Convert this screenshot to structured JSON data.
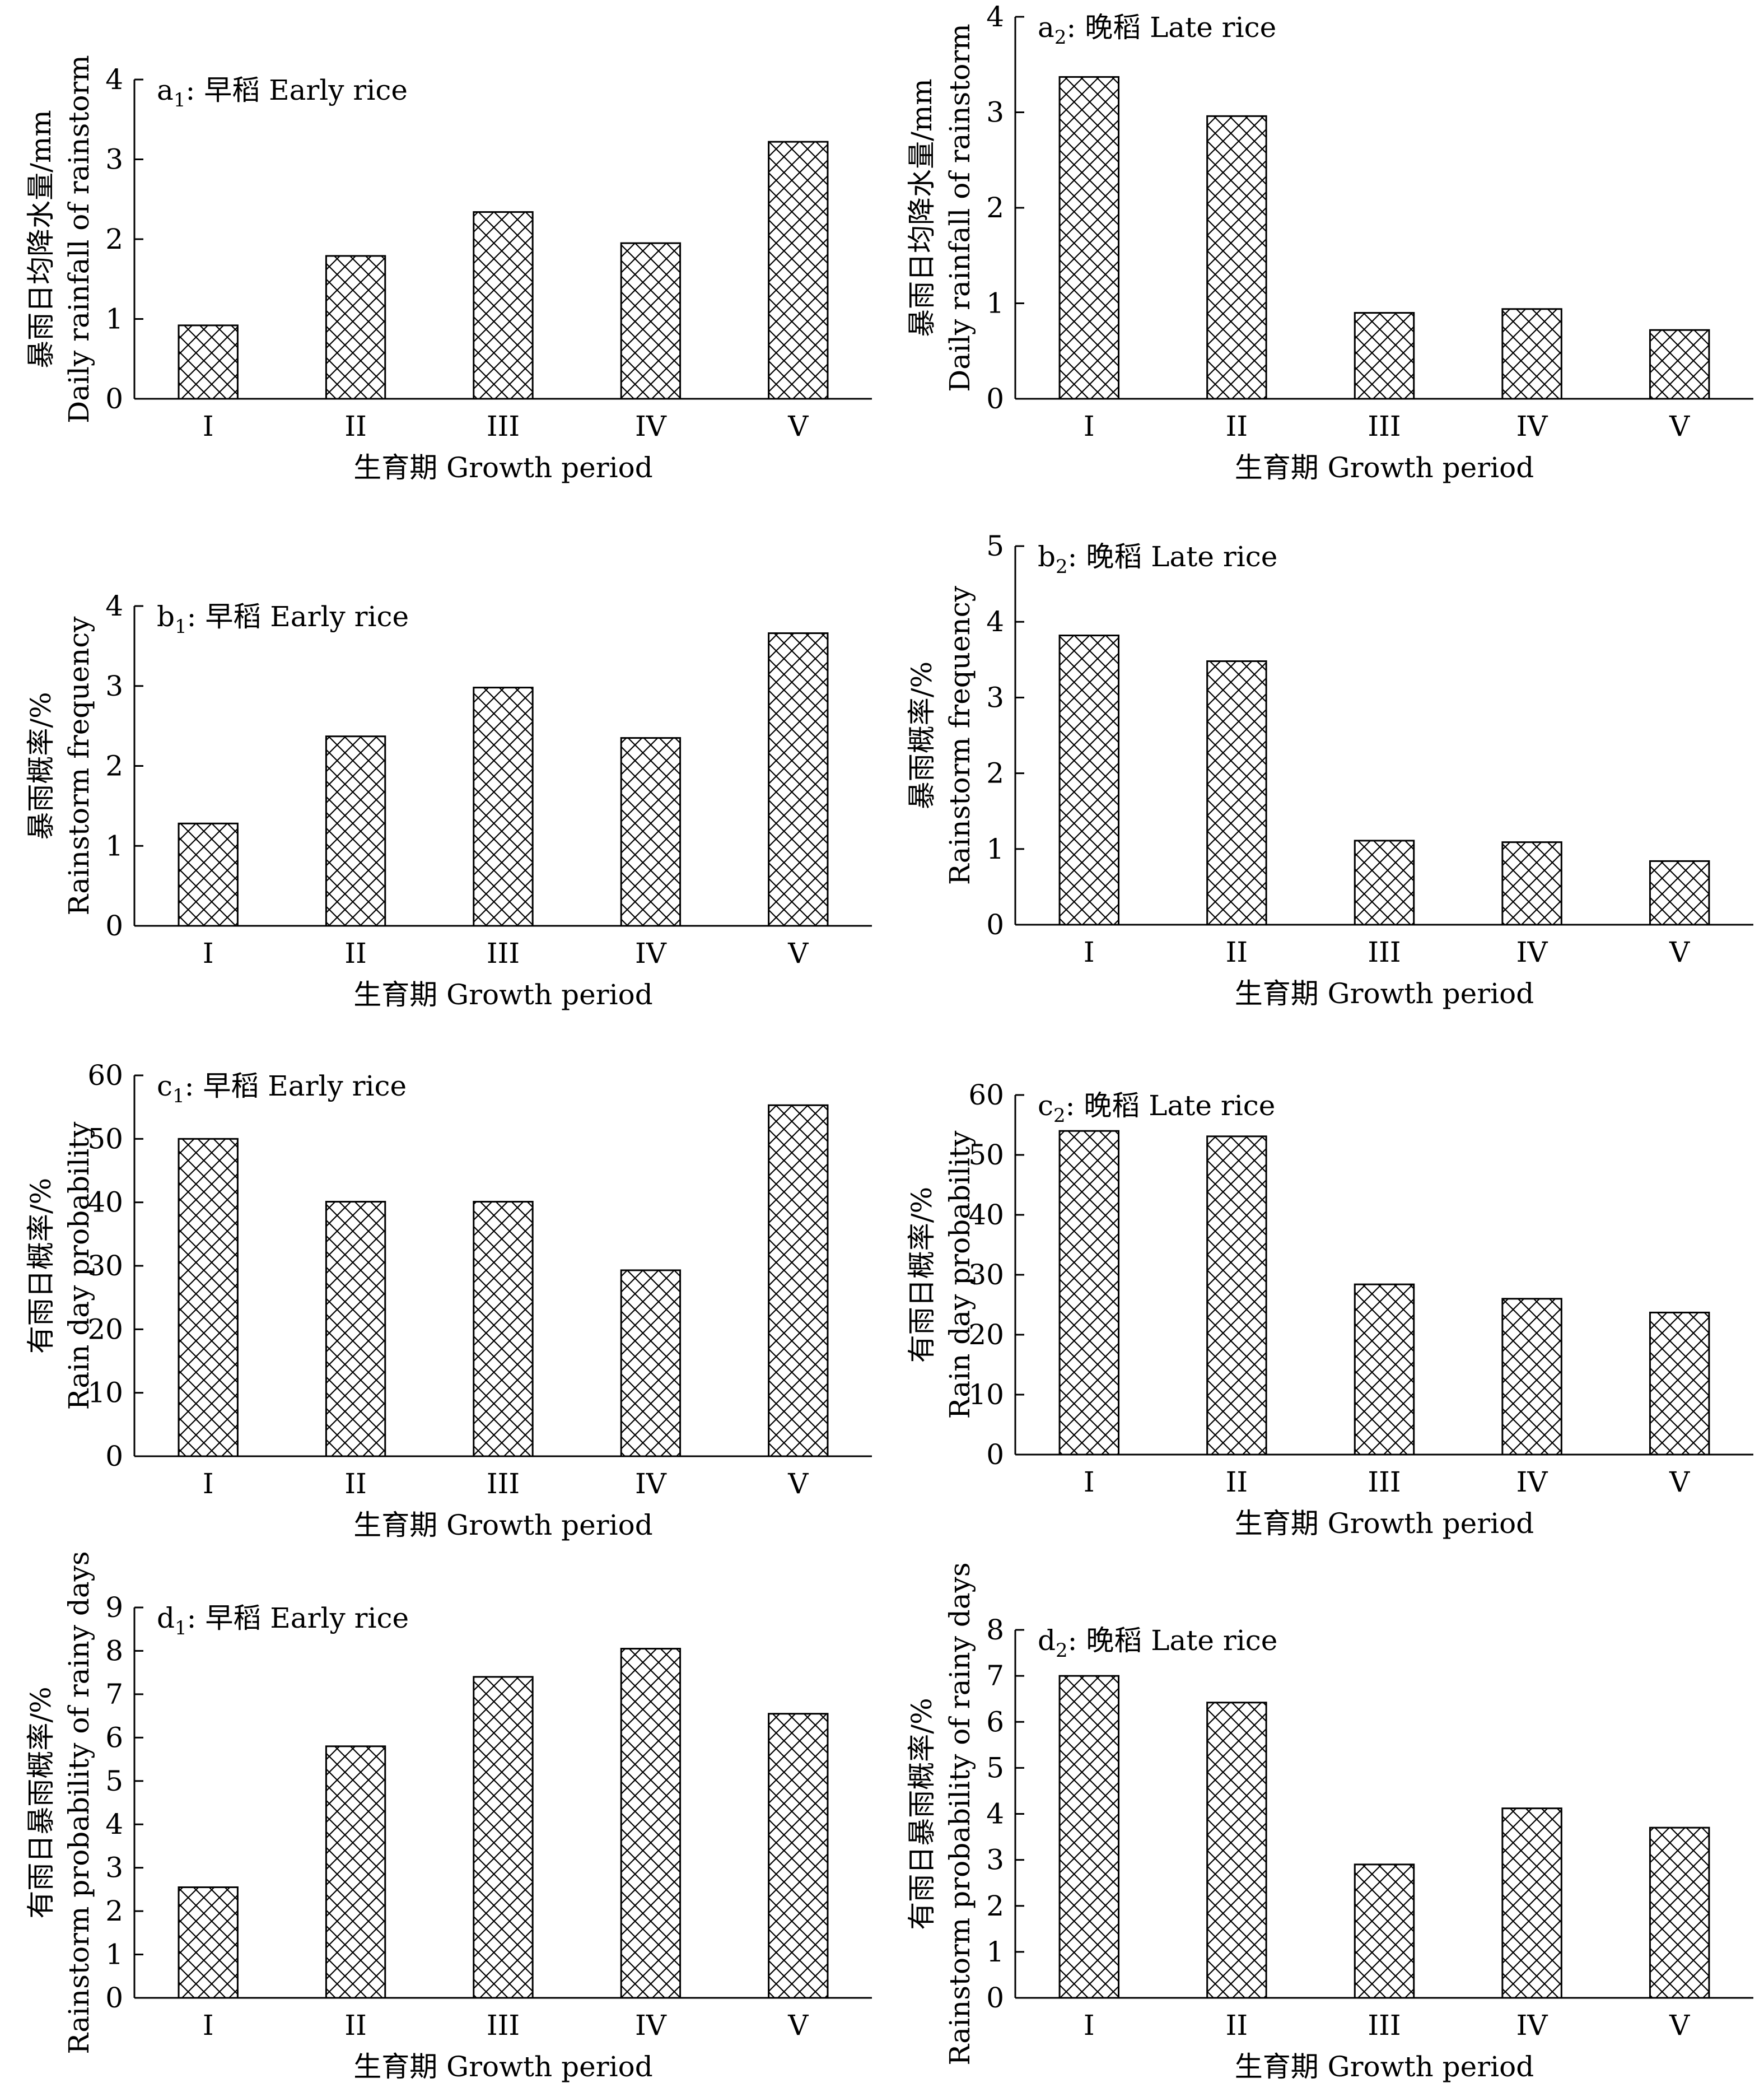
{
  "hatch_color": "#000000",
  "chart_data": [
    {
      "id": "a1",
      "type": "bar",
      "panel_label": "a",
      "panel_sub": "1",
      "panel_text": ": 早稻 Early rice",
      "categories": [
        "I",
        "II",
        "III",
        "IV",
        "V"
      ],
      "values": [
        0.92,
        1.79,
        2.34,
        1.95,
        3.22
      ],
      "ylim": [
        0,
        4
      ],
      "yticks": [
        "0",
        "1",
        "2",
        "3",
        "4"
      ],
      "ylabel_zh": "暴雨日均降水量/mm",
      "ylabel_en": "Daily rainfall of rainstorm",
      "xlabel": "生育期 Growth period"
    },
    {
      "id": "a2",
      "type": "bar",
      "panel_label": "a",
      "panel_sub": "2",
      "panel_text": ": 晚稻 Late rice",
      "categories": [
        "I",
        "II",
        "III",
        "IV",
        "V"
      ],
      "values": [
        3.37,
        2.96,
        0.9,
        0.94,
        0.72
      ],
      "ylim": [
        0,
        4
      ],
      "yticks": [
        "0",
        "1",
        "2",
        "3",
        "4"
      ],
      "ylabel_zh": "暴雨日均降水量/mm",
      "ylabel_en": "Daily rainfall of rainstorm",
      "xlabel": "生育期 Growth period"
    },
    {
      "id": "b1",
      "type": "bar",
      "panel_label": "b",
      "panel_sub": "1",
      "panel_text": ": 早稻 Early rice",
      "categories": [
        "I",
        "II",
        "III",
        "IV",
        "V"
      ],
      "values": [
        1.28,
        2.37,
        2.98,
        2.35,
        3.66
      ],
      "ylim": [
        0,
        4
      ],
      "yticks": [
        "0",
        "1",
        "2",
        "3",
        "4"
      ],
      "ylabel_zh": "暴雨概率/%",
      "ylabel_en": "Rainstorm frequency",
      "xlabel": "生育期 Growth period"
    },
    {
      "id": "b2",
      "type": "bar",
      "panel_label": "b",
      "panel_sub": "2",
      "panel_text": ": 晚稻 Late rice",
      "categories": [
        "I",
        "II",
        "III",
        "IV",
        "V"
      ],
      "values": [
        3.82,
        3.48,
        1.11,
        1.09,
        0.84
      ],
      "ylim": [
        0,
        5
      ],
      "yticks": [
        "0",
        "1",
        "2",
        "3",
        "4",
        "5"
      ],
      "ylabel_zh": "暴雨概率/%",
      "ylabel_en": "Rainstorm frequency",
      "xlabel": "生育期 Growth period"
    },
    {
      "id": "c1",
      "type": "bar",
      "panel_label": "c",
      "panel_sub": "1",
      "panel_text": ": 早稻 Early rice",
      "categories": [
        "I",
        "II",
        "III",
        "IV",
        "V"
      ],
      "values": [
        50,
        40.1,
        40.1,
        29.3,
        55.3
      ],
      "ylim": [
        0,
        60
      ],
      "yticks": [
        "0",
        "10",
        "20",
        "30",
        "40",
        "50",
        "60"
      ],
      "ylabel_zh": "有雨日概率/%",
      "ylabel_en": "Rain day probability",
      "xlabel": "生育期 Growth period"
    },
    {
      "id": "c2",
      "type": "bar",
      "panel_label": "c",
      "panel_sub": "2",
      "panel_text": ": 晚稻 Late rice",
      "categories": [
        "I",
        "II",
        "III",
        "IV",
        "V"
      ],
      "values": [
        54,
        53.1,
        28.4,
        26,
        23.7
      ],
      "ylim": [
        0,
        60
      ],
      "yticks": [
        "0",
        "10",
        "20",
        "30",
        "40",
        "50",
        "60"
      ],
      "ylabel_zh": "有雨日概率/%",
      "ylabel_en": "Rain day probability",
      "xlabel": "生育期 Growth period"
    },
    {
      "id": "d1",
      "type": "bar",
      "panel_label": "d",
      "panel_sub": "1",
      "panel_text": ": 早稻 Early rice",
      "categories": [
        "I",
        "II",
        "III",
        "IV",
        "V"
      ],
      "values": [
        2.55,
        5.8,
        7.4,
        8.05,
        6.55
      ],
      "ylim": [
        0,
        9
      ],
      "yticks": [
        "0",
        "1",
        "2",
        "3",
        "4",
        "5",
        "6",
        "7",
        "8",
        "9"
      ],
      "ylabel_zh": "有雨日暴雨概率/%",
      "ylabel_en": "Rainstorm probability of rainy days",
      "xlabel": "生育期 Growth period"
    },
    {
      "id": "d2",
      "type": "bar",
      "panel_label": "d",
      "panel_sub": "2",
      "panel_text": ": 晚稻 Late rice",
      "categories": [
        "I",
        "II",
        "III",
        "IV",
        "V"
      ],
      "values": [
        7,
        6.42,
        2.9,
        4.12,
        3.7
      ],
      "ylim": [
        0,
        8
      ],
      "yticks": [
        "0",
        "1",
        "2",
        "3",
        "4",
        "5",
        "6",
        "7",
        "8"
      ],
      "ylabel_zh": "有雨日暴雨概率/%",
      "ylabel_en": "Rainstorm probability of rainy days",
      "xlabel": "生育期 Growth period"
    }
  ]
}
